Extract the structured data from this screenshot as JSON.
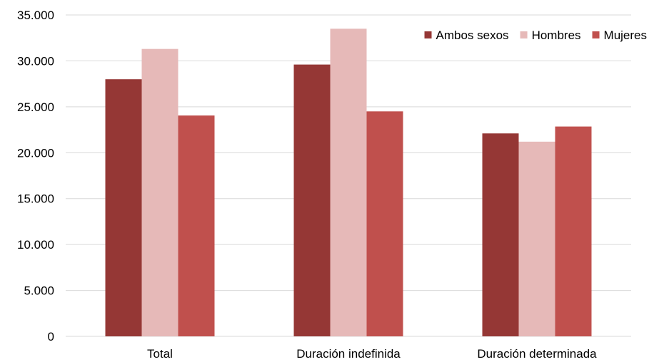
{
  "chart_data": {
    "type": "bar",
    "categories": [
      "Total",
      "Duración indefinida",
      "Duración determinada"
    ],
    "series": [
      {
        "name": "Ambos sexos",
        "color": "#953735",
        "values": [
          28000,
          29600,
          22100
        ]
      },
      {
        "name": "Hombres",
        "color": "#e6b9b8",
        "values": [
          31300,
          33500,
          21200
        ]
      },
      {
        "name": "Mujeres",
        "color": "#c0504d",
        "values": [
          24050,
          24500,
          22850
        ]
      }
    ],
    "yticks": [
      "0",
      "5.000",
      "10.000",
      "15.000",
      "20.000",
      "25.000",
      "30.000",
      "35.000"
    ],
    "ylim": [
      0,
      35000
    ],
    "grid": true,
    "legend_position": "top-right",
    "title": "",
    "xlabel": "",
    "ylabel": ""
  }
}
